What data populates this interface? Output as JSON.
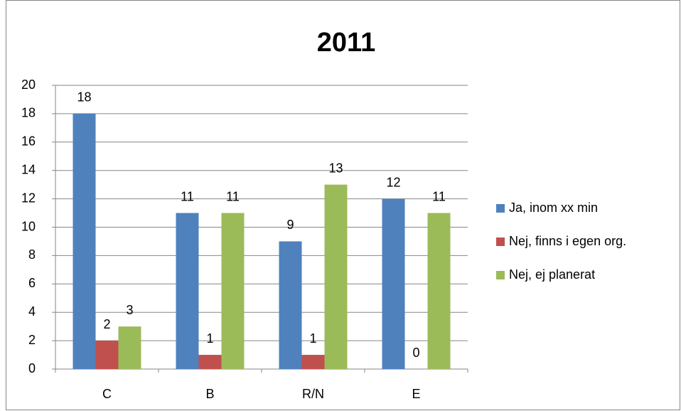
{
  "chart_data": {
    "type": "bar",
    "title": "2011",
    "categories": [
      "C",
      "B",
      "R/N",
      "E"
    ],
    "series": [
      {
        "name": "Ja, inom xx min",
        "color": "#4f81bd",
        "values": [
          18,
          11,
          9,
          12
        ]
      },
      {
        "name": "Nej, finns i egen org.",
        "color": "#c0504d",
        "values": [
          2,
          1,
          1,
          0
        ]
      },
      {
        "name": "Nej, ej planerat",
        "color": "#9bbb59",
        "values": [
          3,
          11,
          13,
          11
        ]
      }
    ],
    "ylim": [
      0,
      20
    ],
    "yticks": [
      0,
      2,
      4,
      6,
      8,
      10,
      12,
      14,
      16,
      18,
      20
    ],
    "grid": true,
    "legend": "right"
  }
}
